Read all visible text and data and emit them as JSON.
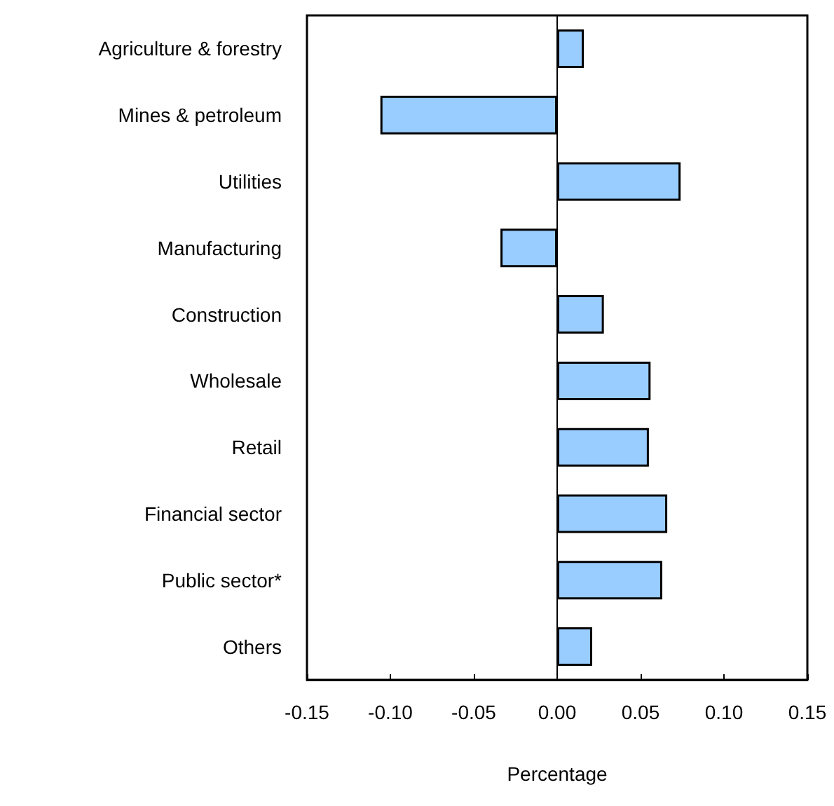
{
  "chart_data": {
    "type": "bar",
    "orientation": "horizontal",
    "xlabel": "Percentage",
    "categories": [
      "Agriculture & forestry",
      "Mines & petroleum",
      "Utilities",
      "Manufacturing",
      "Construction",
      "Wholesale",
      "Retail",
      "Financial sector",
      "Public sector*",
      "Others"
    ],
    "values": [
      0.016,
      -0.106,
      0.074,
      -0.034,
      0.028,
      0.056,
      0.055,
      0.066,
      0.063,
      0.021
    ],
    "color": "#99ccff",
    "xlim": [
      -0.15,
      0.15
    ],
    "xticks": [
      {
        "value": -0.15,
        "label": "-0.15"
      },
      {
        "value": -0.1,
        "label": "-0.10"
      },
      {
        "value": -0.05,
        "label": "-0.05"
      },
      {
        "value": 0,
        "label": "0.00"
      },
      {
        "value": 0.05,
        "label": "0.05"
      },
      {
        "value": 0.1,
        "label": "0.10"
      },
      {
        "value": 0.15,
        "label": "0.15"
      }
    ]
  }
}
